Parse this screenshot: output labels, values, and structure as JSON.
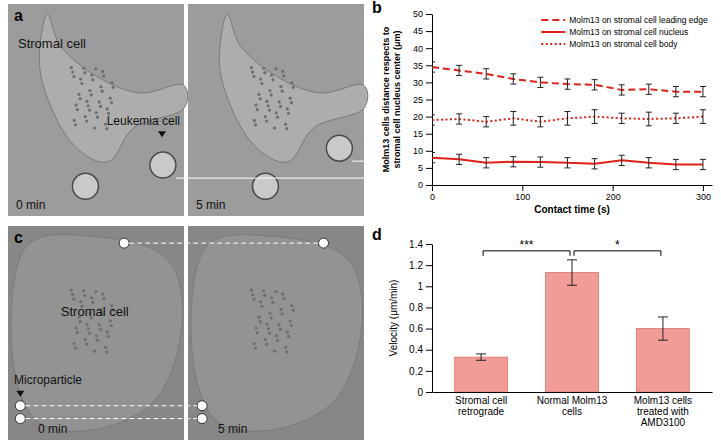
{
  "panels": [
    {
      "letter": "a",
      "labels": [
        "Stromal cell",
        "Leukemia cell"
      ],
      "times": [
        "0 min",
        "5 min"
      ]
    },
    {
      "letter": "c",
      "labels": [
        "Stromal cell",
        "Microparticle"
      ],
      "times": [
        "0 min",
        "5 min"
      ]
    }
  ],
  "chart_data": [
    {
      "letter": "b",
      "type": "line",
      "x_label": "Contact time (s)",
      "y_label": "Molm13 cells distance respects to stromal cell nucleus center (μm)",
      "x": [
        0,
        30,
        60,
        90,
        120,
        150,
        180,
        210,
        240,
        270,
        300
      ],
      "xlim": [
        0,
        310
      ],
      "xticks": [
        0,
        100,
        200,
        300
      ],
      "ylim": [
        0,
        50
      ],
      "yticks": [
        0,
        5,
        10,
        15,
        20,
        25,
        30,
        35,
        40,
        45,
        50
      ],
      "grid": false,
      "legend": "top-right",
      "series": [
        {
          "name": "Molm13 on stromal cell leading edge",
          "color": "#e0201b",
          "line_style": "dashed",
          "values": [
            34.5,
            33.5,
            32.5,
            31,
            30,
            29.5,
            29.3,
            27.8,
            28,
            27.3,
            27.3
          ],
          "errors": [
            1.5,
            1.5,
            1.5,
            1.5,
            1.5,
            1.5,
            1.5,
            1.5,
            1.5,
            1.5,
            1.5
          ]
        },
        {
          "name": "Molm13 on stromal cell nucleus",
          "color": "#e0201b",
          "line_style": "solid",
          "values": [
            8,
            7.5,
            6.5,
            6.8,
            6.7,
            6.5,
            6.2,
            7.2,
            6.5,
            6,
            6
          ],
          "errors": [
            1.5,
            1.5,
            1.5,
            1.5,
            1.5,
            1.5,
            1.5,
            1.5,
            1.5,
            1.5,
            1.5
          ]
        },
        {
          "name": "Molm13 on stromal cell body",
          "color": "#e0201b",
          "line_style": "dotted",
          "values": [
            19,
            19.3,
            18.5,
            19.5,
            18.5,
            19.5,
            20,
            19.5,
            19.3,
            19.5,
            20
          ],
          "errors": [
            1.5,
            1.5,
            1.5,
            2,
            1.5,
            2,
            2,
            1.5,
            2,
            1.5,
            2
          ]
        }
      ]
    },
    {
      "letter": "d",
      "type": "bar",
      "y_label": "Velocity (μm/min)",
      "categories": [
        "Stromal cell retrograde",
        "Normal Molm13 cells",
        "Molm13 cells treated with AMD3100"
      ],
      "values": [
        0.33,
        1.13,
        0.6
      ],
      "errors": [
        0.03,
        0.12,
        0.11
      ],
      "colors": [
        "#f19c96",
        "#f19c96",
        "#f19c96"
      ],
      "ylim": [
        0,
        1.4
      ],
      "yticks": [
        0,
        0.2,
        0.4,
        0.6,
        0.8,
        1,
        1.2,
        1.4
      ],
      "grid": false,
      "annotations": [
        {
          "text": "***",
          "between": [
            0,
            1
          ]
        },
        {
          "text": "*",
          "between": [
            1,
            2
          ]
        }
      ]
    }
  ]
}
